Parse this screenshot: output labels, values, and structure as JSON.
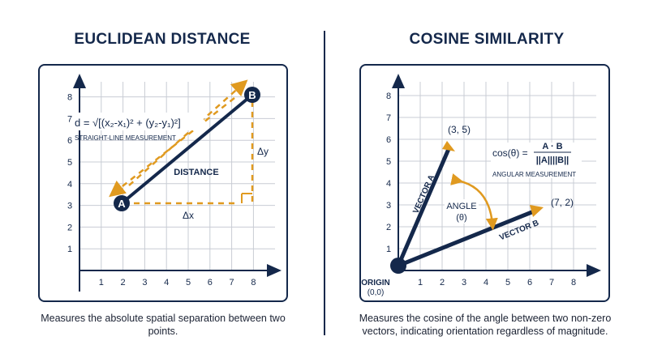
{
  "left": {
    "title": "EUCLIDEAN DISTANCE",
    "formula": "d = √[(x₂-x₁)² + (y₂-y₁)²]",
    "formula_caption": "STRAIGHT-LINE MEASUREMENT",
    "line_label": "DISTANCE",
    "dx_label": "Δx",
    "dy_label": "Δy",
    "point_a": "A",
    "point_b": "B",
    "description": "Measures the absolute spatial separation between two points."
  },
  "right": {
    "title": "COSINE SIMILARITY",
    "formula_lhs": "cos(θ) =",
    "formula_num": "A · B",
    "formula_den": "||A||||B||",
    "formula_caption": "ANGULAR MEASUREMENT",
    "vector_a_label": "VECTOR A",
    "vector_b_label": "VECTOR B",
    "vector_a_coord": "(3, 5)",
    "vector_b_coord": "(7, 2)",
    "angle_label": "ANGLE",
    "angle_symbol": "(θ)",
    "origin_label": "ORIGIN",
    "origin_coord": "(0,0)",
    "description": "Measures the cosine of the angle between two non-zero vectors, indicating orientation regardless of magnitude."
  },
  "axis_ticks": [
    "1",
    "2",
    "3",
    "4",
    "5",
    "6",
    "7",
    "8"
  ],
  "colors": {
    "navy": "#14284b",
    "orange": "#e09a20",
    "grid": "#c8ccd4"
  }
}
